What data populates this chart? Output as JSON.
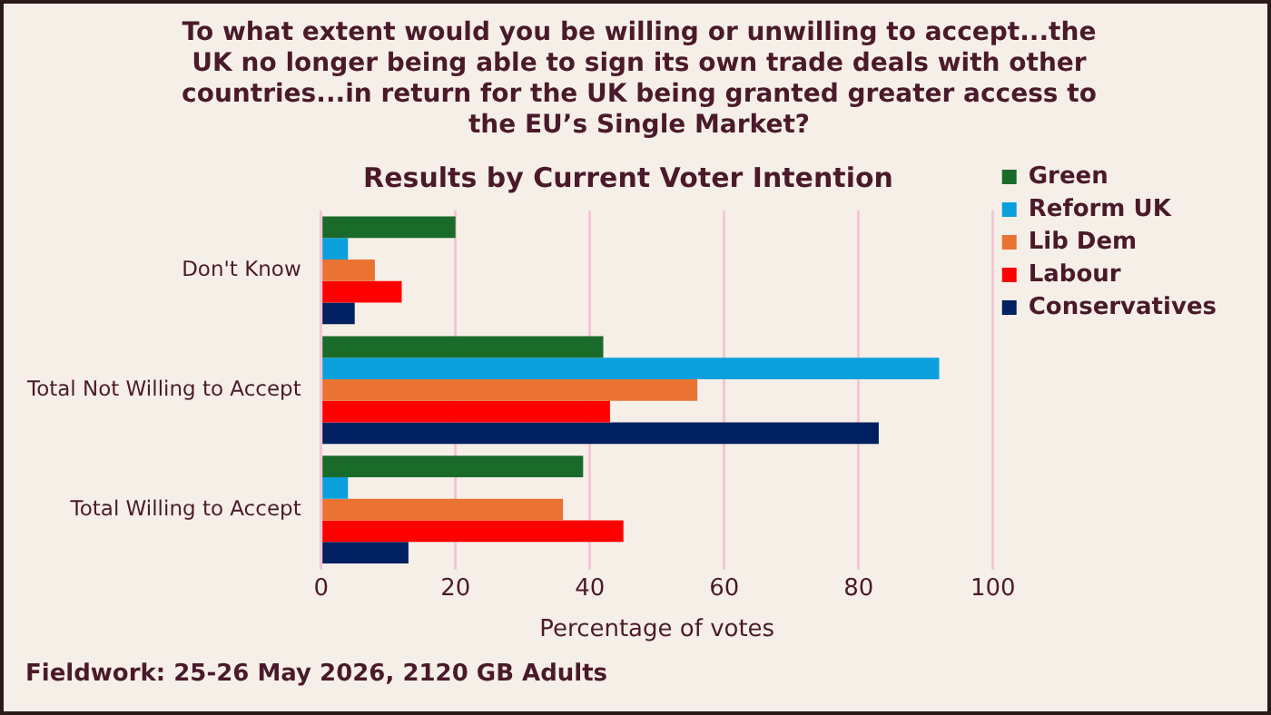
{
  "chart_data": {
    "type": "bar",
    "orientation": "horizontal",
    "title": "To what extent would you be willing or unwilling to accept...the UK no longer being able to sign its own trade deals with other countries...in return for the UK being granted greater access to the EU’s Single Market?",
    "subtitle": "Results by Current Voter Intention",
    "xlabel": "Percentage of votes",
    "categories": [
      "Don't Know",
      "Total Not Willing to Accept",
      "Total Willing to Accept"
    ],
    "series": [
      {
        "name": "Green",
        "color": "#1a6b2a",
        "values": [
          20,
          42,
          39
        ]
      },
      {
        "name": "Reform UK",
        "color": "#0aa0dc",
        "values": [
          4,
          92,
          4
        ]
      },
      {
        "name": "Lib Dem",
        "color": "#ea7233",
        "values": [
          8,
          56,
          36
        ]
      },
      {
        "name": "Labour",
        "color": "#ff0000",
        "values": [
          12,
          43,
          45
        ]
      },
      {
        "name": "Conservatives",
        "color": "#002060",
        "values": [
          5,
          83,
          13
        ]
      }
    ],
    "xlim": [
      0,
      100
    ],
    "xticks": [
      0,
      20,
      40,
      60,
      80,
      100
    ],
    "grid": "x",
    "legend": "top right",
    "annotations": [
      "Fieldwork: 25-26 May 2026, 2120 GB Adults"
    ]
  }
}
